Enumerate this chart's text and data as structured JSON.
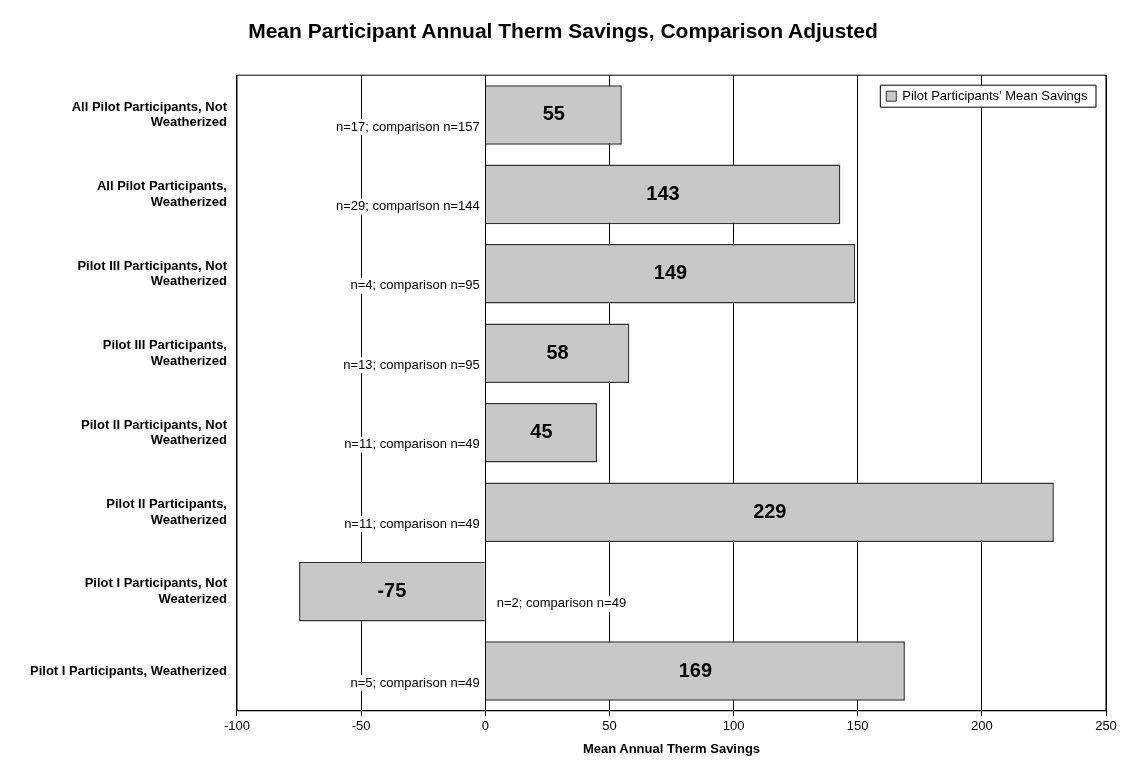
{
  "chart_data": {
    "type": "bar",
    "orientation": "horizontal",
    "title": "Mean Participant Annual Therm Savings, Comparison Adjusted",
    "xlabel": "Mean Annual Therm Savings",
    "categories": [
      "All Pilot Participants, Not Weatherized",
      "All Pilot Participants, Weatherized",
      "Pilot III Participants, Not Weatherized",
      "Pilot III Participants, Weatherized",
      "Pilot II Participants, Not Weatherized",
      "Pilot II Participants, Weatherized",
      "Pilot I Participants, Not Weaterized",
      "Pilot I Participants, Weatherized"
    ],
    "series": [
      {
        "name": "Pilot Participants’ Mean Savings",
        "color": "#c8c8c8",
        "values": [
          55,
          143,
          149,
          58,
          45,
          229,
          -75,
          169
        ]
      }
    ],
    "xlim": [
      -100,
      250
    ],
    "xticks": [
      -100,
      -50,
      0,
      50,
      100,
      150,
      200,
      250
    ],
    "grid": "x",
    "legend": "top right",
    "data_labels": true,
    "annotations": [
      "n=17; comparison n=157",
      "n=29; comparison n=144",
      "n=4; comparison n=95",
      "n=13; comparison n=95",
      "n=11; comparison n=49",
      "n=11; comparison n=49",
      "n=2; comparison n=49",
      "n=5; comparison n=49"
    ]
  }
}
